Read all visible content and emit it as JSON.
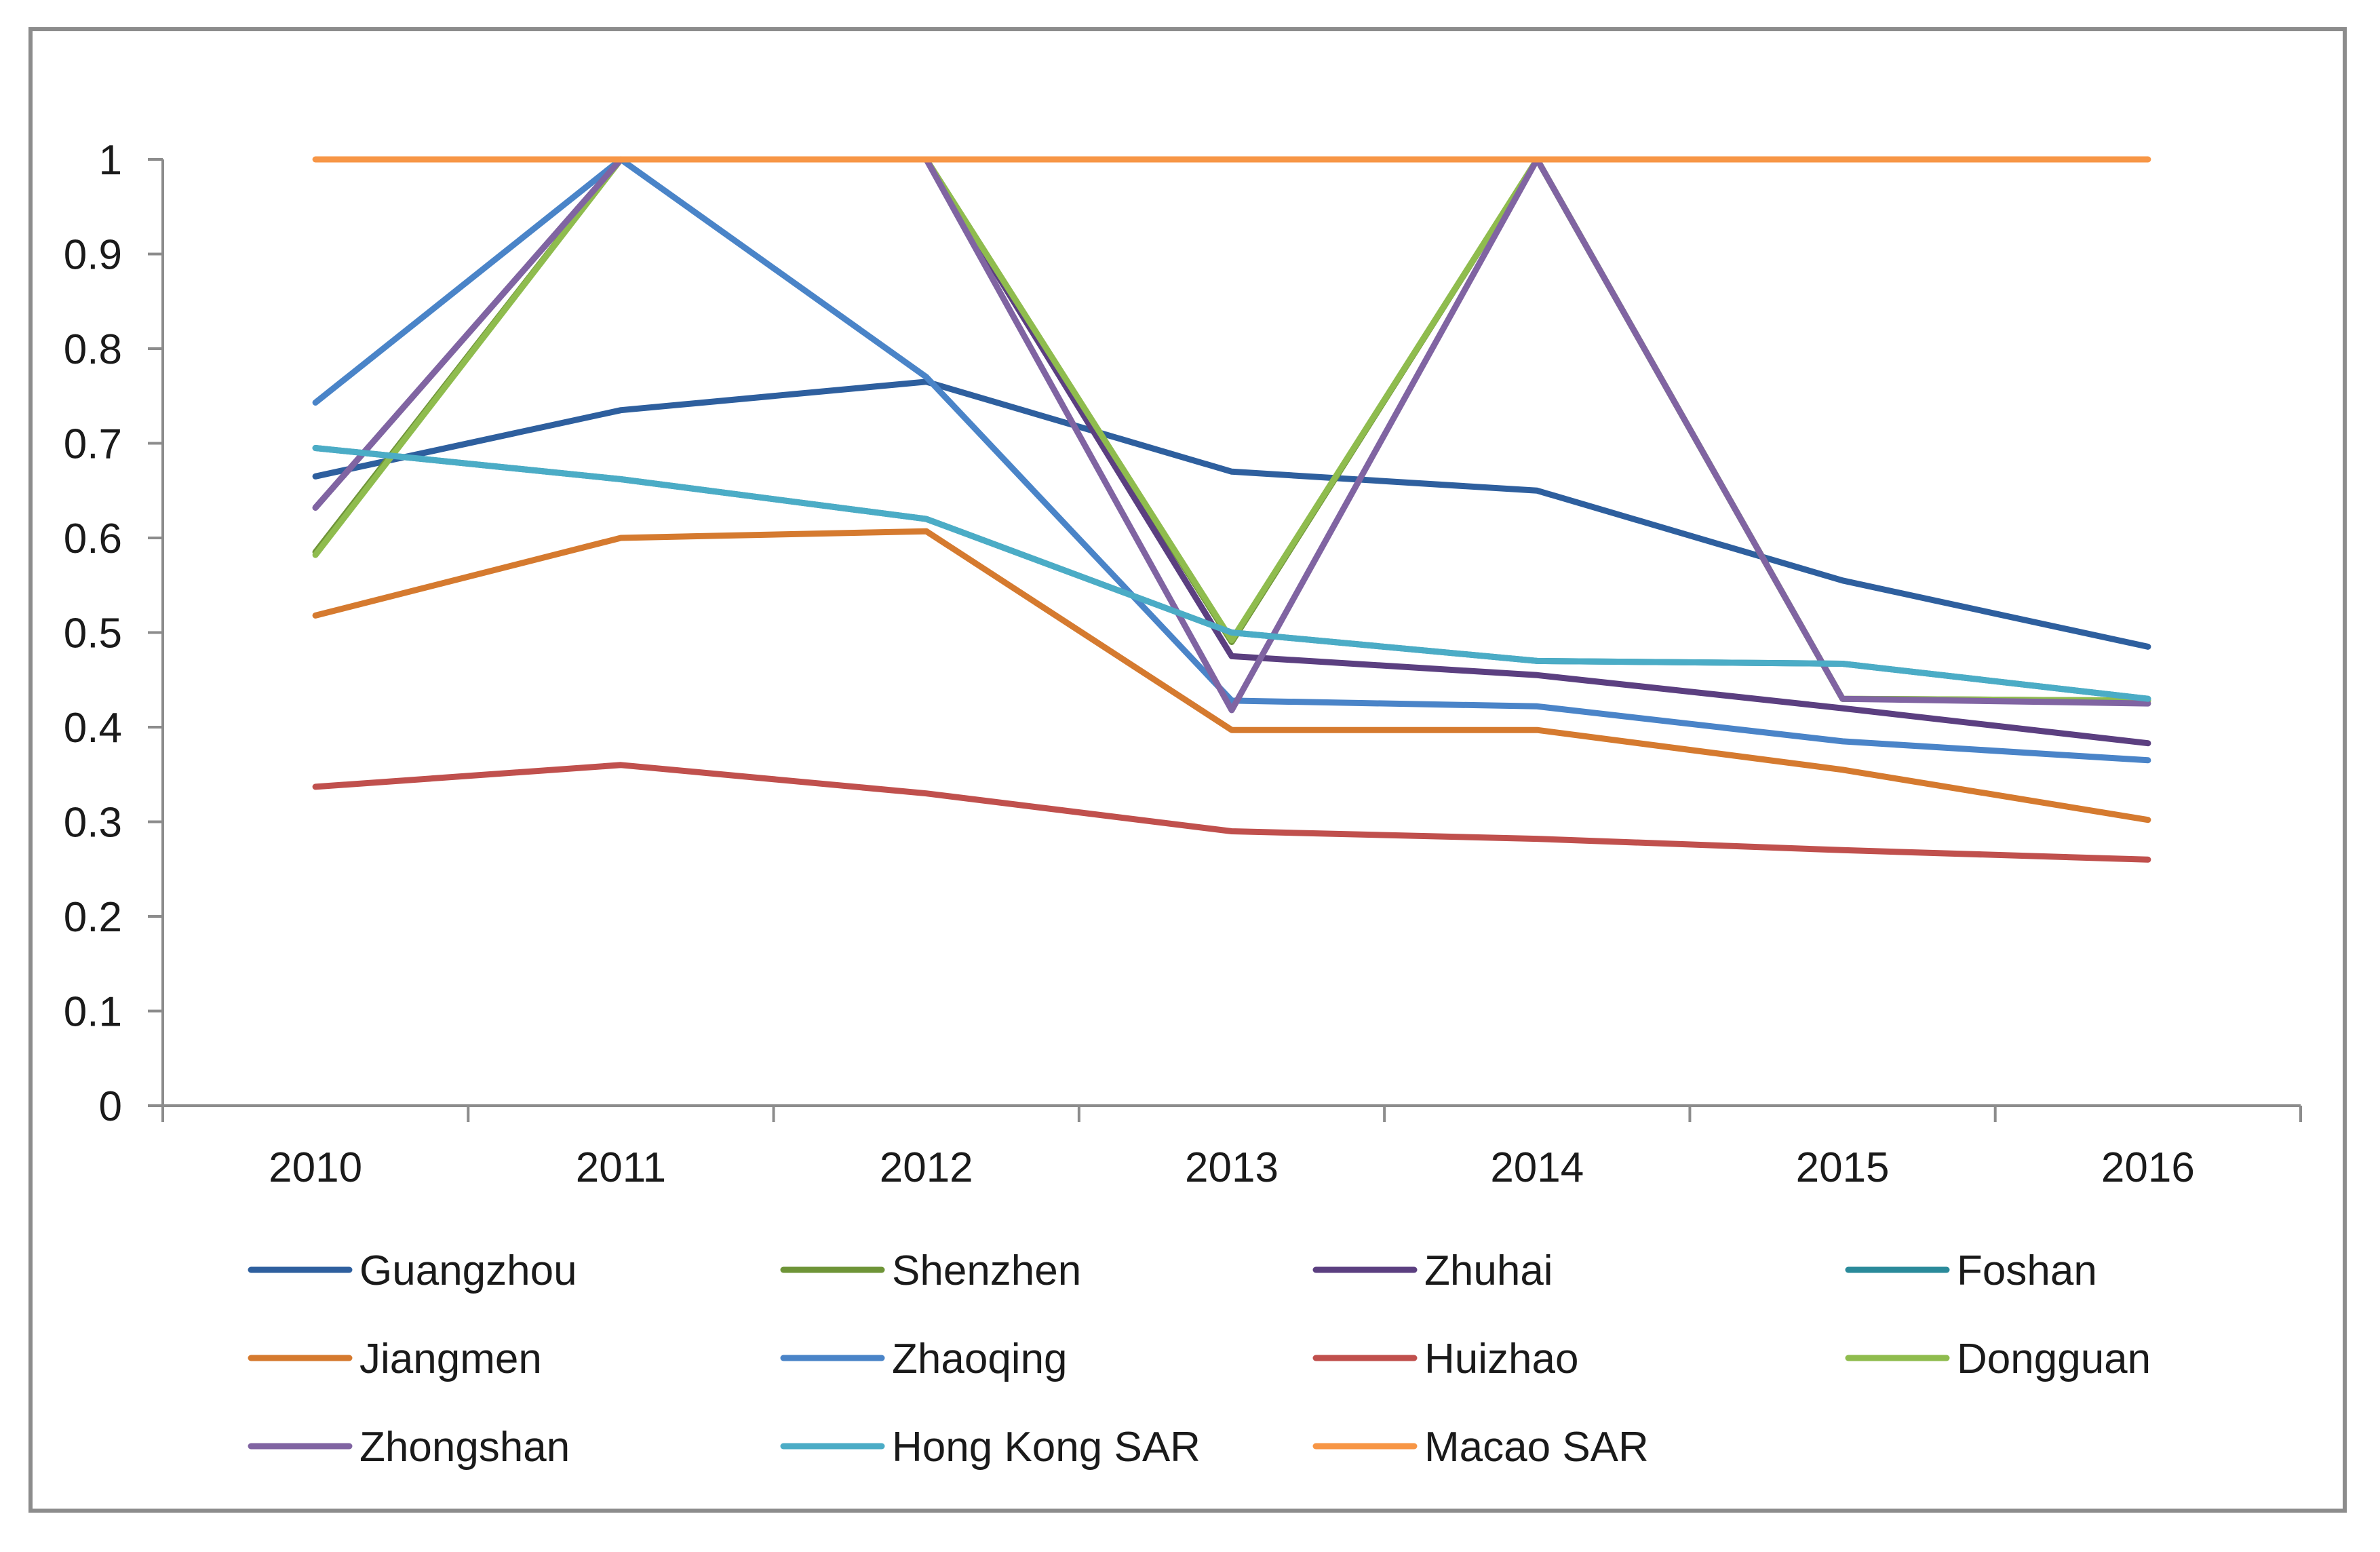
{
  "chart_data": {
    "type": "line",
    "title": "",
    "xlabel": "",
    "ylabel": "",
    "categories": [
      "2010",
      "2011",
      "2012",
      "2013",
      "2014",
      "2015",
      "2016"
    ],
    "ylim": [
      0,
      1
    ],
    "yticks": [
      "0",
      "0.1",
      "0.2",
      "0.3",
      "0.4",
      "0.5",
      "0.6",
      "0.7",
      "0.8",
      "0.9",
      "1"
    ],
    "grid": false,
    "legend_position": "bottom",
    "series": [
      {
        "name": "Guangzhou",
        "color": "#2e5f9e",
        "values": [
          0.665,
          0.735,
          0.765,
          0.67,
          0.65,
          0.555,
          0.485
        ]
      },
      {
        "name": "Shenzhen",
        "color": "#6e9437",
        "values": [
          0.585,
          1.0,
          1.0,
          0.49,
          1.0,
          0.43,
          0.428
        ]
      },
      {
        "name": "Zhuhai",
        "color": "#5b3f80",
        "values": [
          0.632,
          1.0,
          1.0,
          0.475,
          0.455,
          0.42,
          0.383
        ]
      },
      {
        "name": "Foshan",
        "color": "#2a8a9a",
        "values": [
          0.695,
          0.662,
          0.62,
          0.5,
          0.47,
          0.467,
          0.43
        ]
      },
      {
        "name": "Jiangmen",
        "color": "#d57a2f",
        "values": [
          0.518,
          0.6,
          0.607,
          0.397,
          0.397,
          0.355,
          0.302
        ]
      },
      {
        "name": "Zhaoqing",
        "color": "#4a84c8",
        "values": [
          0.743,
          1.0,
          0.77,
          0.428,
          0.422,
          0.385,
          0.365
        ]
      },
      {
        "name": "Huizhao",
        "color": "#c0504d",
        "values": [
          0.337,
          0.36,
          0.33,
          0.29,
          0.282,
          0.27,
          0.26
        ]
      },
      {
        "name": "Dongguan",
        "color": "#8fbc4e",
        "values": [
          0.582,
          1.0,
          1.0,
          0.492,
          1.0,
          0.43,
          0.428
        ]
      },
      {
        "name": "Zhongshan",
        "color": "#8064a2",
        "values": [
          0.632,
          1.0,
          1.0,
          0.418,
          1.0,
          0.43,
          0.425
        ]
      },
      {
        "name": "Hong Kong SAR",
        "color": "#4bacc6",
        "values": [
          0.695,
          0.662,
          0.62,
          0.5,
          0.47,
          0.467,
          0.43
        ]
      },
      {
        "name": "Macao SAR",
        "color": "#f79646",
        "values": [
          1.0,
          1.0,
          1.0,
          1.0,
          1.0,
          1.0,
          1.0
        ]
      }
    ]
  }
}
